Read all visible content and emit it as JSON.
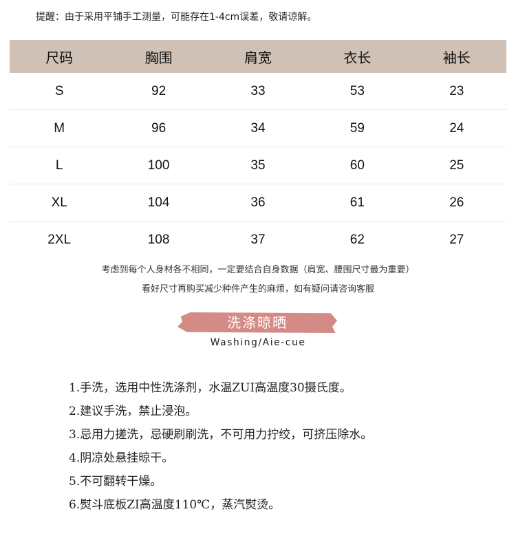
{
  "notice": "提醒：由于采用平铺手工测量，可能存在1-4cm误差，敬请谅解。",
  "size_table": {
    "headers": [
      "尺码",
      "胸围",
      "肩宽",
      "衣长",
      "袖长"
    ],
    "rows": [
      [
        "S",
        "92",
        "33",
        "53",
        "23"
      ],
      [
        "M",
        "96",
        "34",
        "59",
        "24"
      ],
      [
        "L",
        "100",
        "35",
        "60",
        "25"
      ],
      [
        "XL",
        "104",
        "36",
        "61",
        "26"
      ],
      [
        "2XL",
        "108",
        "37",
        "62",
        "27"
      ]
    ],
    "header_color": "#cfc1b6"
  },
  "tips": [
    "考虑到每个人身材各不相同，一定要结合自身数据（肩宽、腰围尺寸最为重要）",
    "看好尺寸再购买减少种件产生的麻烦，如有疑问请咨询客服"
  ],
  "washing": {
    "title": "洗涤晾晒",
    "subtitle": "Washing/Aie-cue",
    "accent_color": "#d48b85",
    "items": [
      "1.手洗，选用中性洗涤剂，水温ZUI高温度30摄氏度。",
      "2.建议手洗，禁止浸泡。",
      "3.忌用力搓洗，忌硬刷刷洗，不可用力拧绞，可挤压除水。",
      "4.阴凉处悬挂晾干。",
      "5.不可翻转干燥。",
      "6.熨斗底板ZI高温度110℃，蒸汽熨烫。"
    ]
  }
}
